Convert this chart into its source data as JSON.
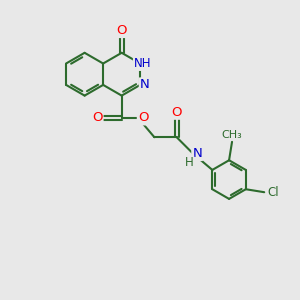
{
  "bg_color": "#e8e8e8",
  "bond_color": "#2d6b2d",
  "bond_width": 1.5,
  "atom_colors": {
    "O": "#ff0000",
    "N": "#0000cc",
    "H": "#2d6b2d",
    "Cl": "#2d6b2d",
    "C": "#2d6b2d"
  },
  "font_size": 8.5
}
